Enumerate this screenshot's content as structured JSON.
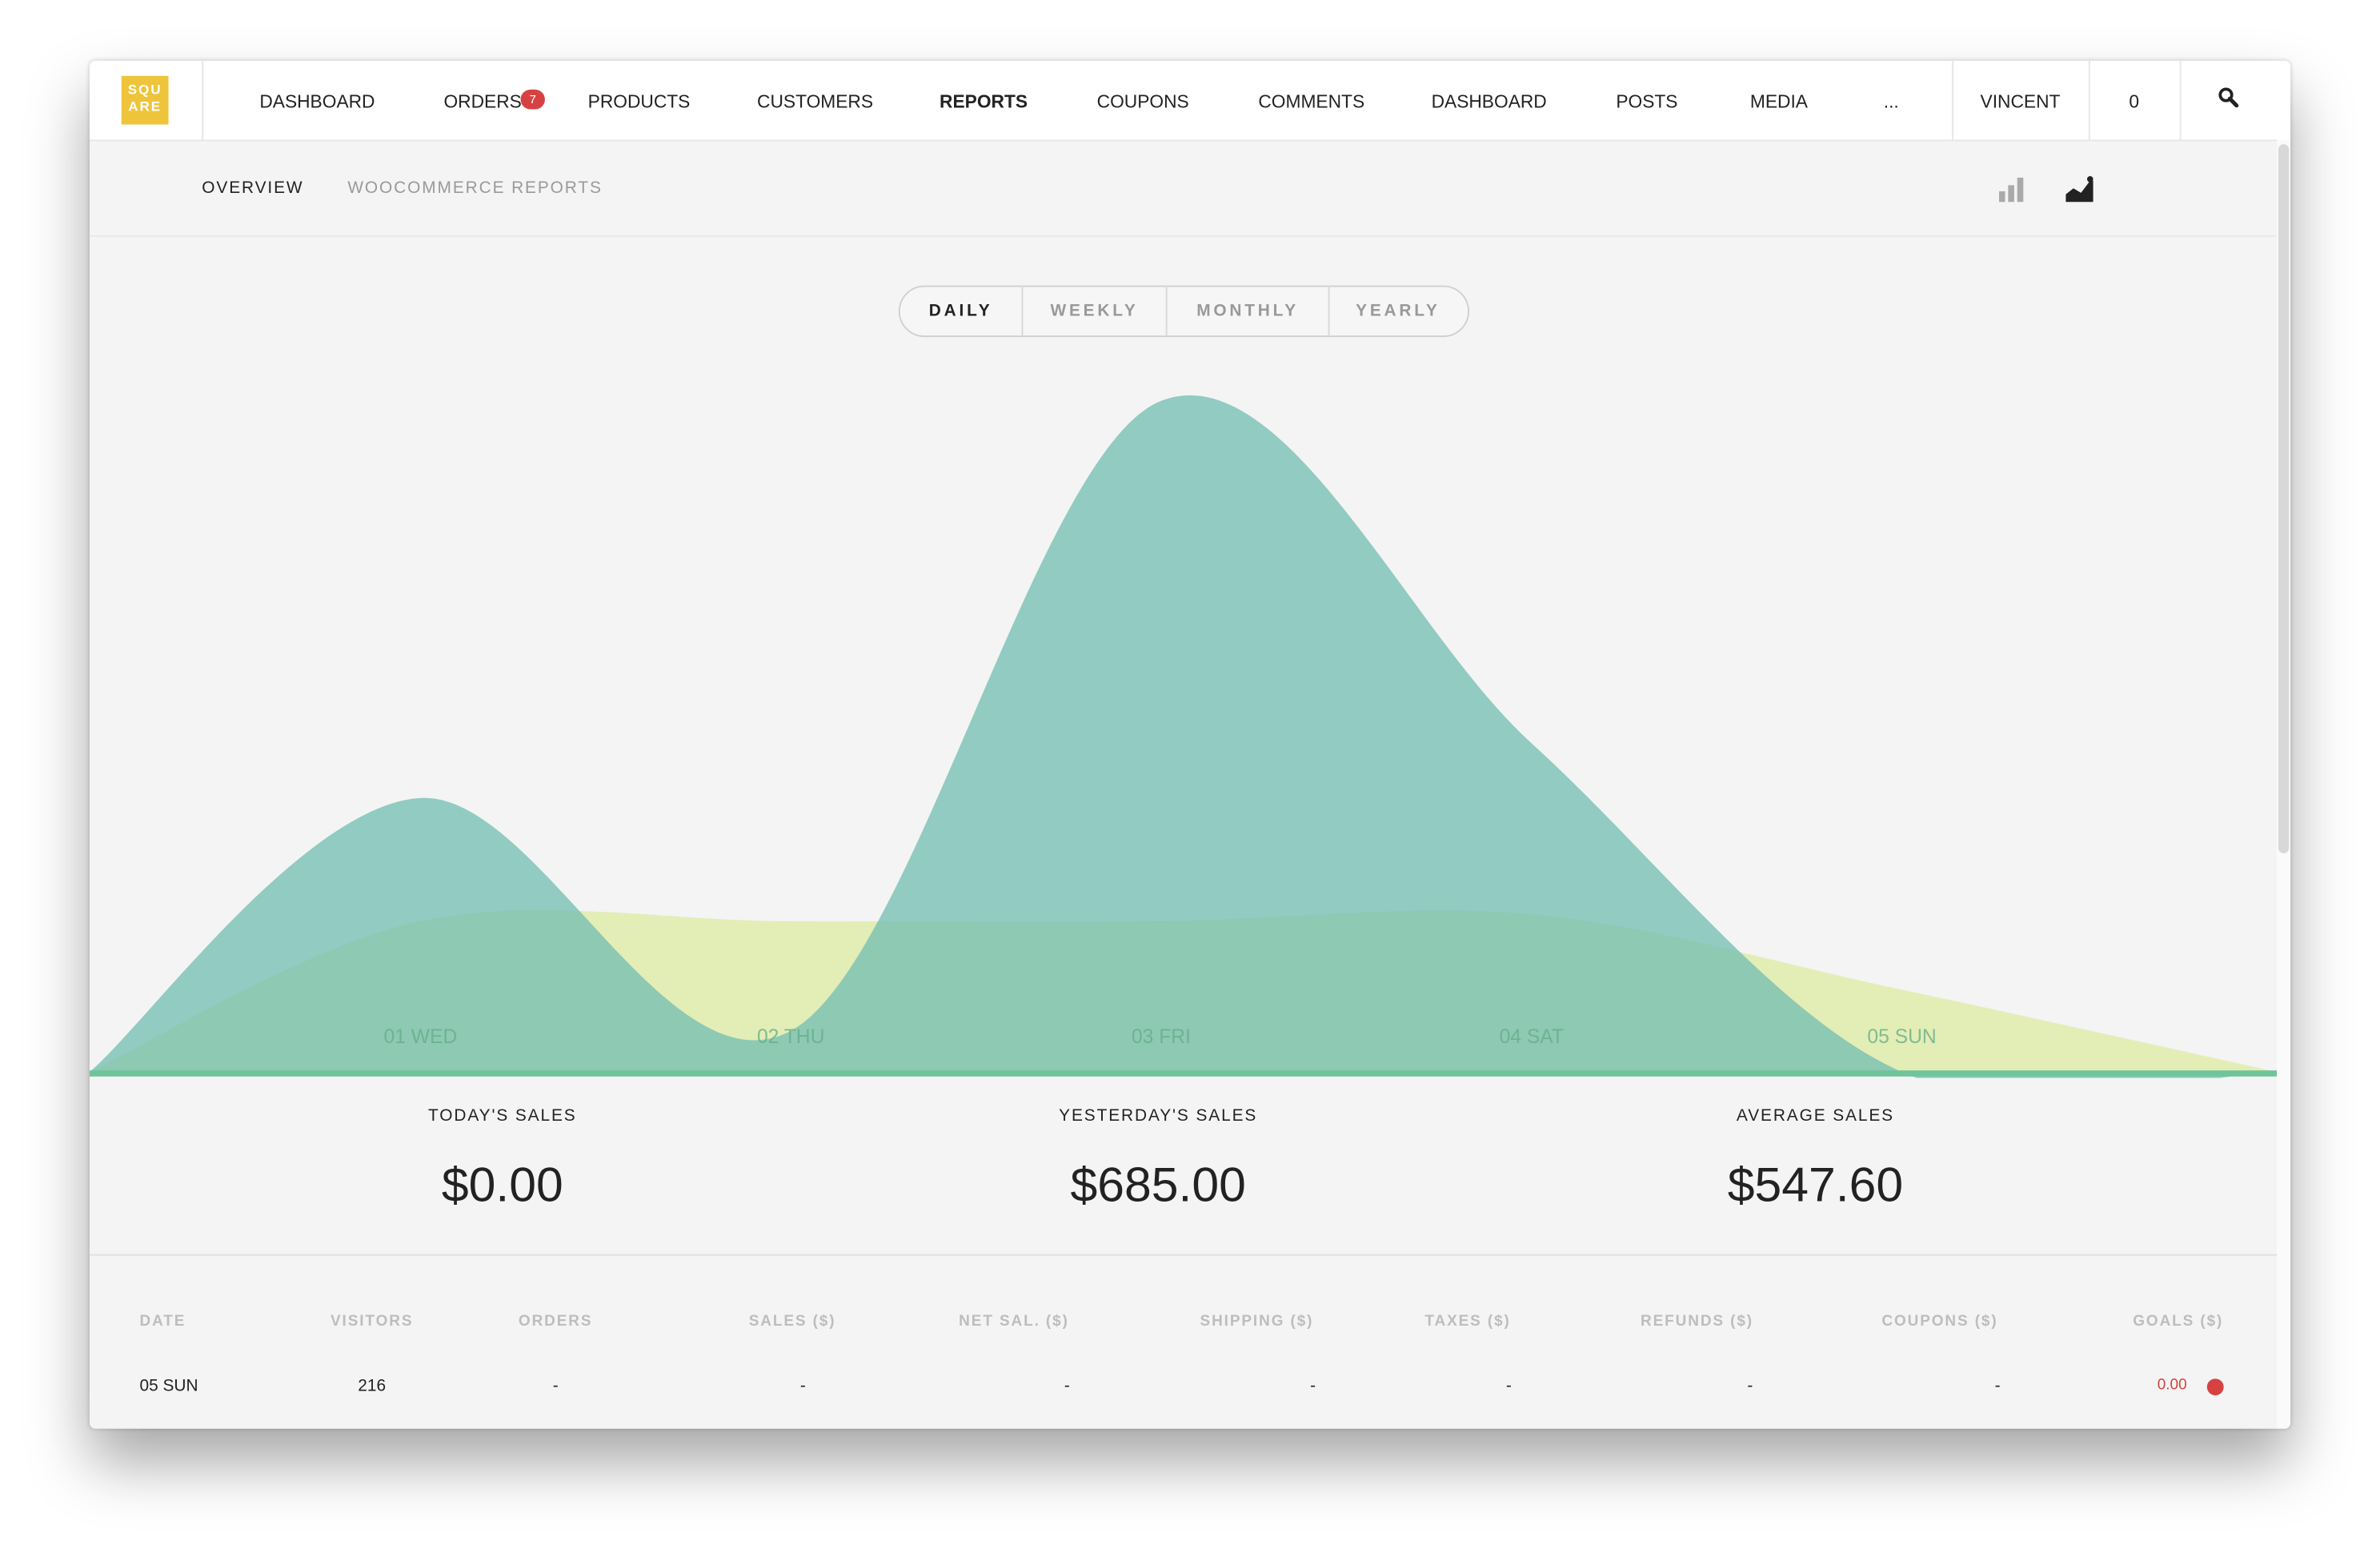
{
  "header": {
    "logo": [
      "SQU",
      "ARE"
    ],
    "nav": [
      "DASHBOARD",
      "ORDERS",
      "PRODUCTS",
      "CUSTOMERS",
      "REPORTS",
      "COUPONS",
      "COMMENTS",
      "DASHBOARD",
      "POSTS",
      "MEDIA",
      "..."
    ],
    "orders_badge": "7",
    "user": "VINCENT",
    "cart": "0"
  },
  "subnav": [
    "OVERVIEW",
    "WOOCOMMERCE REPORTS"
  ],
  "periods": [
    "DAILY",
    "WEEKLY",
    "MONTHLY",
    "YEARLY"
  ],
  "chart_data": {
    "type": "area",
    "categories": [
      "01 WED",
      "02 THU",
      "03 FRI",
      "04 SAT",
      "05 SUN"
    ],
    "series": [
      {
        "color": "#e2ecb2",
        "values": [
          22,
          22,
          22,
          23,
          12
        ]
      },
      {
        "color": "#74bfb2",
        "values": [
          40,
          6,
          98,
          48,
          0
        ]
      }
    ],
    "ylim": [
      0,
      100
    ]
  },
  "stats": [
    {
      "label": "TODAY'S SALES",
      "value": "$0.00"
    },
    {
      "label": "YESTERDAY'S SALES",
      "value": "$685.00"
    },
    {
      "label": "AVERAGE SALES",
      "value": "$547.60"
    }
  ],
  "table": {
    "columns": [
      "DATE",
      "VISITORS",
      "ORDERS",
      "SALES ($)",
      "NET SAL. ($)",
      "SHIPPING ($)",
      "TAXES ($)",
      "REFUNDS ($)",
      "COUPONS ($)",
      "GOALS  ($)"
    ],
    "rows": [
      [
        "05 SUN",
        "216",
        "-",
        "-",
        "-",
        "-",
        "-",
        "-",
        "-",
        "0.00"
      ]
    ]
  }
}
